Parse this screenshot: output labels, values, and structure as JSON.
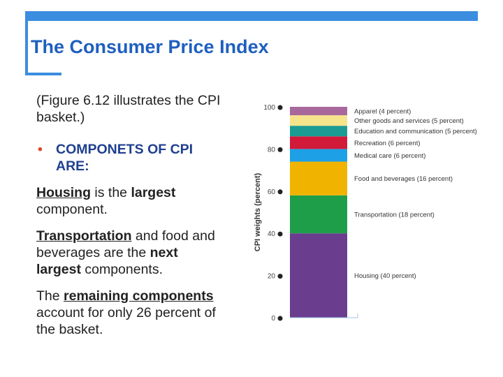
{
  "slide": {
    "title": "The Consumer Price Index",
    "intro_line1": "(Figure 6.12 illustrates the CPI",
    "intro_line2": "basket.)",
    "bullet_line1": "COMPONETS OF CPI",
    "bullet_line2": "ARE:",
    "housing_label": "Housing",
    "housing_rest1": " is the ",
    "housing_bold": "largest",
    "housing_rest2": "component.",
    "transport_label": "Transportation",
    "transport_rest1": " and food and",
    "transport_rest2": "beverages are the ",
    "transport_bold1": "next",
    "transport_bold2": "largest",
    "transport_rest3": " components.",
    "remaining_pre": "The ",
    "remaining_label": "remaining components",
    "remaining_rest1": "account for only 26 percent of",
    "remaining_rest2": "the basket."
  },
  "chart_data": {
    "type": "bar",
    "subtype": "stacked",
    "ylabel": "CPI weights (percent)",
    "ylim": [
      0,
      100
    ],
    "yticks": [
      "0",
      "20",
      "40",
      "60",
      "80",
      "100"
    ],
    "grid": false,
    "series": [
      {
        "label": "Housing (40 percent)",
        "value": 40,
        "color": "#6a3d8f"
      },
      {
        "label": "Transportation (18 percent)",
        "value": 18,
        "color": "#1f9e4a"
      },
      {
        "label": "Food and beverages (16 percent)",
        "value": 16,
        "color": "#f0b400"
      },
      {
        "label": "Medical care (6 percent)",
        "value": 6,
        "color": "#1ea0e6"
      },
      {
        "label": "Recreation (6 percent)",
        "value": 6,
        "color": "#d11a3a"
      },
      {
        "label": "Education and communication (5 percent)",
        "value": 5,
        "color": "#1b9b92"
      },
      {
        "label": "Other goods and services (5 percent)",
        "value": 5,
        "color": "#f6e48c"
      },
      {
        "label": "Apparel (4 percent)",
        "value": 4,
        "color": "#a8689b"
      }
    ]
  }
}
